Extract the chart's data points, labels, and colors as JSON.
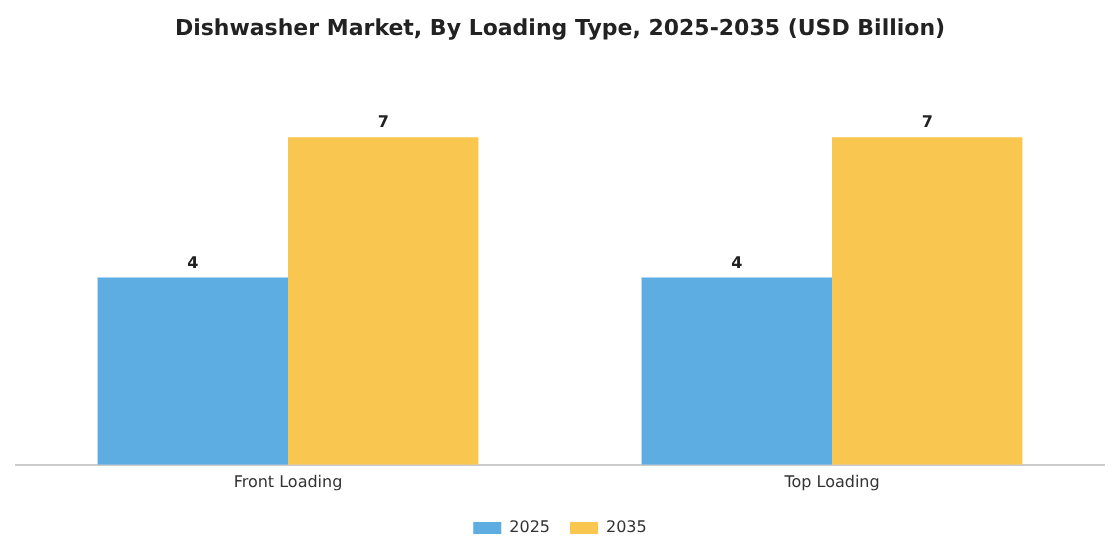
{
  "chart_data": {
    "type": "bar",
    "title": "Dishwasher Market, By Loading Type, 2025-2035 (USD Billion)",
    "categories": [
      "Front Loading",
      "Top Loading"
    ],
    "series": [
      {
        "name": "2025",
        "color": "#5dade2",
        "values": [
          4,
          4
        ]
      },
      {
        "name": "2035",
        "color": "#f9c74f",
        "values": [
          7,
          7
        ]
      }
    ],
    "tick_labels": "x",
    "data_labels": true,
    "grid": false,
    "legend": "bottom"
  }
}
